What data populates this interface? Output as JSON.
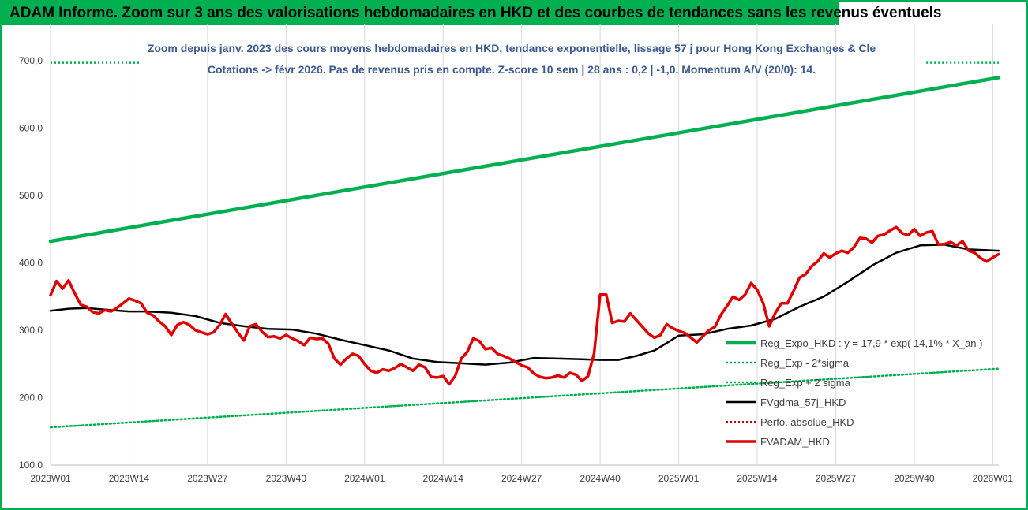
{
  "header": {
    "title": "ADAM Informe. Zoom sur 3 ans des valorisations hebdomadaires en HKD et des courbes de tendances sans les revenus éventuels"
  },
  "colors": {
    "frame": "#00b050",
    "subtitle": "#3c5a8f",
    "reg": "#00b050",
    "fv57": "#000000",
    "adam": "#e00000",
    "perfo": "#c00000"
  },
  "chart_data": {
    "type": "line",
    "title_lines": [
      "Zoom depuis janv. 2023 des cours moyens hebdomadaires en HKD, tendance exponentielle, lissage 57 j pour Hong Kong Exchanges & Cle",
      "Cotations -> févr 2026. Pas de revenus pris en compte. Z-score 10 sem | 28 ans : 0,2 | -1,0. Momentum A/V (20/0): 14."
    ],
    "ylim": [
      100,
      700
    ],
    "yticks": [
      "100,0",
      "200,0",
      "300,0",
      "400,0",
      "500,0",
      "600,0",
      "700,0"
    ],
    "xticks": [
      "2023W01",
      "2023W14",
      "2023W27",
      "2023W40",
      "2024W01",
      "2024W14",
      "2024W27",
      "2024W40",
      "2025W01",
      "2025W14",
      "2025W27",
      "2025W40",
      "2026W01"
    ],
    "grid": true,
    "legend_position": "right",
    "series": [
      {
        "name": "Reg_Expo_HKD : y = 17,9 * exp( 14,1% *  X_an )",
        "key": "reg",
        "x": [
          0,
          157
        ],
        "y": [
          432,
          675
        ]
      },
      {
        "name": "Reg_Exp - 2*sigma",
        "key": "reg_minus",
        "x": [
          0,
          157
        ],
        "y": [
          156,
          243
        ]
      },
      {
        "name": "Reg_Exp + 2 sigma",
        "key": "reg_plus",
        "x": [
          0,
          15,
          145,
          157
        ],
        "y": [
          697,
          697,
          697,
          697
        ]
      },
      {
        "name": "FVgdma_57j_HKD",
        "key": "fv57",
        "x": [
          0,
          3,
          6,
          10,
          13,
          16,
          20,
          24,
          28,
          32,
          36,
          40,
          44,
          48,
          52,
          56,
          60,
          64,
          68,
          72,
          76,
          80,
          84,
          88,
          91,
          94,
          97,
          100,
          104,
          108,
          112,
          116,
          120,
          124,
          128,
          132,
          136,
          140,
          144,
          148,
          152,
          157
        ],
        "y": [
          329,
          332,
          333,
          330,
          328,
          328,
          326,
          321,
          311,
          306,
          302,
          301,
          295,
          286,
          278,
          270,
          258,
          253,
          251,
          249,
          252,
          259,
          258,
          257,
          256,
          256,
          262,
          270,
          292,
          294,
          302,
          307,
          317,
          335,
          350,
          372,
          396,
          415,
          426,
          427,
          420,
          418
        ]
      },
      {
        "name": "Perfo. absolue_HKD",
        "key": "perfo",
        "x": [],
        "y": []
      },
      {
        "name": "FVADAM_HKD",
        "key": "adam",
        "x": [
          0,
          1,
          2,
          3,
          4,
          5,
          6,
          7,
          8,
          9,
          10,
          11,
          12,
          13,
          14,
          15,
          16,
          17,
          18,
          19,
          20,
          21,
          22,
          23,
          24,
          25,
          26,
          27,
          28,
          29,
          30,
          31,
          32,
          33,
          34,
          35,
          36,
          37,
          38,
          39,
          40,
          41,
          42,
          43,
          44,
          45,
          46,
          47,
          48,
          49,
          50,
          51,
          52,
          53,
          54,
          55,
          56,
          57,
          58,
          59,
          60,
          61,
          62,
          63,
          64,
          65,
          66,
          67,
          68,
          69,
          70,
          71,
          72,
          73,
          74,
          75,
          76,
          77,
          78,
          79,
          80,
          81,
          82,
          83,
          84,
          85,
          86,
          87,
          88,
          89,
          90,
          91,
          92,
          93,
          94,
          95,
          96,
          97,
          98,
          99,
          100,
          101,
          102,
          103,
          104,
          105,
          106,
          107,
          108,
          109,
          110,
          111,
          112,
          113,
          114,
          115,
          116,
          117,
          118,
          119,
          120,
          121,
          122,
          123,
          124,
          125,
          126,
          127,
          128,
          129,
          130,
          131,
          132,
          133,
          134,
          135,
          136,
          137,
          138,
          139,
          140,
          141,
          142,
          143,
          144,
          145,
          146,
          147,
          148,
          149,
          150,
          151,
          152,
          153,
          154,
          155,
          156,
          157
        ],
        "y": [
          352,
          373,
          362,
          374,
          355,
          338,
          335,
          327,
          325,
          330,
          328,
          333,
          340,
          347,
          344,
          340,
          326,
          322,
          313,
          306,
          293,
          308,
          312,
          308,
          300,
          297,
          294,
          297,
          308,
          324,
          310,
          297,
          285,
          306,
          309,
          298,
          290,
          291,
          288,
          293,
          288,
          284,
          278,
          289,
          287,
          288,
          280,
          258,
          249,
          258,
          265,
          262,
          250,
          240,
          237,
          242,
          240,
          244,
          250,
          245,
          240,
          249,
          245,
          231,
          230,
          232,
          220,
          232,
          258,
          268,
          288,
          284,
          272,
          274,
          265,
          262,
          258,
          253,
          248,
          245,
          236,
          231,
          229,
          230,
          233,
          230,
          237,
          234,
          225,
          232,
          266,
          353,
          353,
          311,
          314,
          313,
          325,
          315,
          305,
          295,
          289,
          293,
          309,
          303,
          299,
          296,
          289,
          282,
          291,
          300,
          305,
          323,
          336,
          350,
          345,
          353,
          370,
          360,
          340,
          306,
          326,
          340,
          340,
          358,
          378,
          383,
          395,
          402,
          414,
          408,
          414,
          418,
          415,
          423,
          437,
          436,
          430,
          440,
          442,
          448,
          453,
          444,
          441,
          450,
          440,
          445,
          447,
          427,
          428,
          431,
          426,
          432,
          418,
          415,
          407,
          402,
          408,
          413
        ]
      }
    ]
  }
}
